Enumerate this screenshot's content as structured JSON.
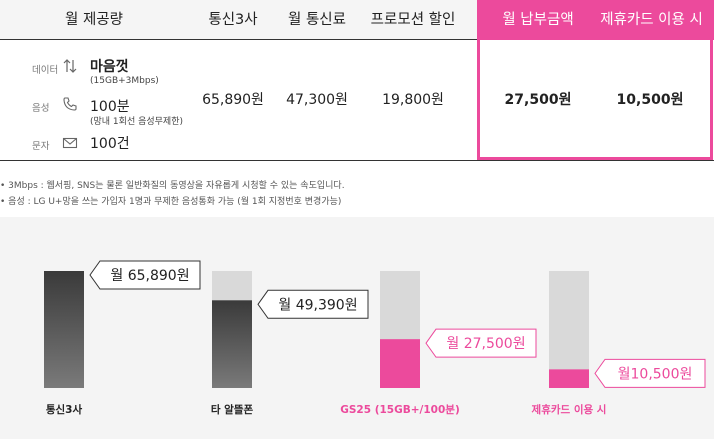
{
  "table": {
    "headers": {
      "plan": "월 제공량",
      "carrier": "통신3사",
      "monthly_fee": "월 통신료",
      "promo": "프로모션 할인",
      "monthly_pay": "월 납부금액",
      "card": "제휴카드 이용 시"
    },
    "plan": {
      "data_tag": "데이터",
      "data_main": "마음껏",
      "data_sub": "(15GB+3Mbps)",
      "voice_tag": "음성",
      "voice_main": "100분",
      "voice_sub": "(망내 1회선 음성무제한)",
      "sms_tag": "문자",
      "sms_main": "100건"
    },
    "values": {
      "carrier": "65,890원",
      "monthly_fee": "47,300원",
      "promo": "19,800원",
      "monthly_pay": "27,500원",
      "card": "10,500원"
    }
  },
  "notes": [
    "• 3Mbps : 웹서핑, SNS는 물론 일반화질의 동영상을 자유롭게 시청할 수 있는 속도입니다.",
    "• 음성 : LG U+망을 쓰는 가입자 1명과 무제한 음성통화 가능 (월 1회 지정번호 변경가능)"
  ],
  "colors": {
    "accent": "#ec4a9c",
    "dark_bar": "#3a3a3a",
    "bg_bar": "#d9d9d9"
  },
  "chart_data": {
    "type": "bar",
    "categories": [
      "통신3사",
      "타 알뜰폰",
      "GS25 (15GB+/100분)",
      "제휴카드 이용 시"
    ],
    "values": [
      65890,
      49390,
      27500,
      10500
    ],
    "labels": [
      "월 65,890원",
      "월 49,390원",
      "월 27,500원",
      "월10,500원"
    ],
    "highlight": [
      false,
      false,
      true,
      true
    ],
    "ylim": [
      0,
      65890
    ],
    "grid": false
  }
}
